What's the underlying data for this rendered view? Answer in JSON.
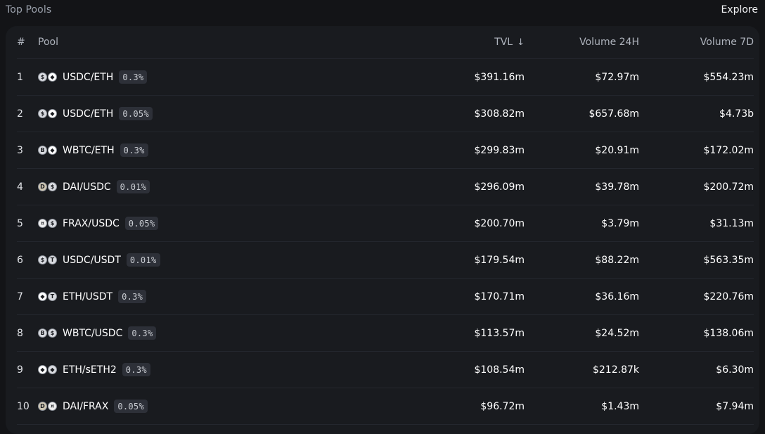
{
  "header": {
    "title": "Top Pools",
    "explore_label": "Explore"
  },
  "table": {
    "columns": {
      "index": "#",
      "pool": "Pool",
      "tvl": "TVL",
      "tvl_sort_arrow": "↓",
      "volume_24h": "Volume 24H",
      "volume_7d": "Volume 7D"
    },
    "rows": [
      {
        "index": "1",
        "pair": "USDC/ETH",
        "fee": "0.3%",
        "tvl": "$391.16m",
        "vol24": "$72.97m",
        "vol7": "$554.23m",
        "icons": [
          "usdc-icon",
          "eth-icon"
        ]
      },
      {
        "index": "2",
        "pair": "USDC/ETH",
        "fee": "0.05%",
        "tvl": "$308.82m",
        "vol24": "$657.68m",
        "vol7": "$4.73b",
        "icons": [
          "usdc-icon",
          "eth-icon"
        ]
      },
      {
        "index": "3",
        "pair": "WBTC/ETH",
        "fee": "0.3%",
        "tvl": "$299.83m",
        "vol24": "$20.91m",
        "vol7": "$172.02m",
        "icons": [
          "wbtc-icon",
          "eth-icon"
        ]
      },
      {
        "index": "4",
        "pair": "DAI/USDC",
        "fee": "0.01%",
        "tvl": "$296.09m",
        "vol24": "$39.78m",
        "vol7": "$200.72m",
        "icons": [
          "dai-icon",
          "usdc-icon"
        ]
      },
      {
        "index": "5",
        "pair": "FRAX/USDC",
        "fee": "0.05%",
        "tvl": "$200.70m",
        "vol24": "$3.79m",
        "vol7": "$31.13m",
        "icons": [
          "frax-icon",
          "usdc-icon"
        ]
      },
      {
        "index": "6",
        "pair": "USDC/USDT",
        "fee": "0.01%",
        "tvl": "$179.54m",
        "vol24": "$88.22m",
        "vol7": "$563.35m",
        "icons": [
          "usdc-icon",
          "usdt-icon"
        ]
      },
      {
        "index": "7",
        "pair": "ETH/USDT",
        "fee": "0.3%",
        "tvl": "$170.71m",
        "vol24": "$36.16m",
        "vol7": "$220.76m",
        "icons": [
          "eth-icon",
          "usdt-icon"
        ]
      },
      {
        "index": "8",
        "pair": "WBTC/USDC",
        "fee": "0.3%",
        "tvl": "$113.57m",
        "vol24": "$24.52m",
        "vol7": "$138.06m",
        "icons": [
          "wbtc-icon",
          "usdc-icon"
        ]
      },
      {
        "index": "9",
        "pair": "ETH/sETH2",
        "fee": "0.3%",
        "tvl": "$108.54m",
        "vol24": "$212.87k",
        "vol7": "$6.30m",
        "icons": [
          "eth-icon",
          "seth2-icon"
        ]
      },
      {
        "index": "10",
        "pair": "DAI/FRAX",
        "fee": "0.05%",
        "tvl": "$96.72m",
        "vol24": "$1.43m",
        "vol7": "$7.94m",
        "icons": [
          "dai-icon",
          "frax-icon"
        ]
      }
    ]
  }
}
